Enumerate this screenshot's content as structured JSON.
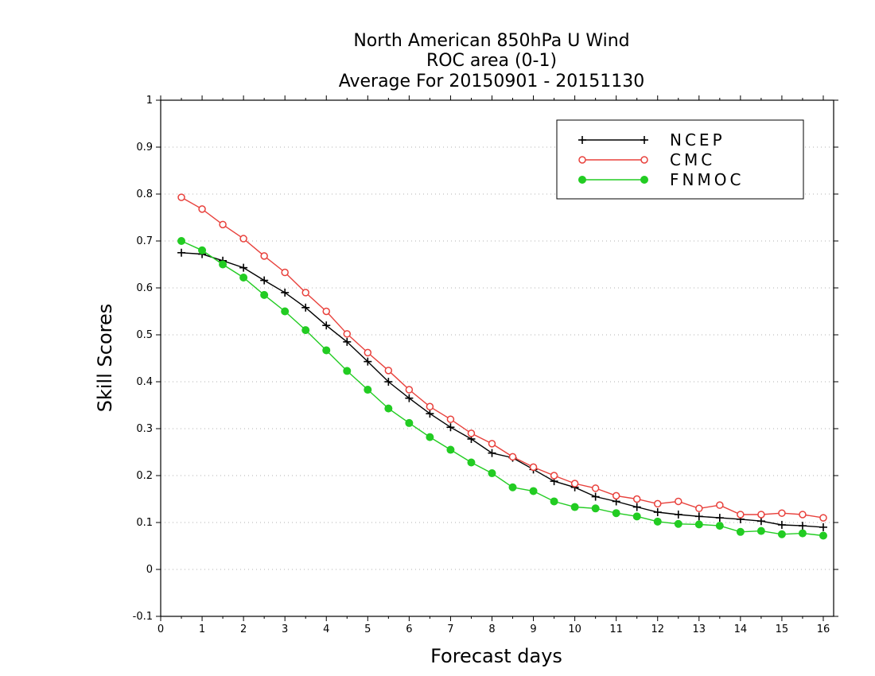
{
  "chart_data": {
    "type": "line",
    "title": [
      "North American 850hPa U Wind",
      "ROC area (0-1)",
      "Average For 20150901 - 20151130"
    ],
    "xlabel": "Forecast days",
    "ylabel": "Skill Scores",
    "xlim": [
      0,
      16.25
    ],
    "ylim": [
      -0.1,
      1
    ],
    "xticks": [
      0,
      1,
      2,
      3,
      4,
      5,
      6,
      7,
      8,
      9,
      10,
      11,
      12,
      13,
      14,
      15,
      16
    ],
    "xtick_labels": [
      "0",
      "1",
      "2",
      "3",
      "4",
      "5",
      "6",
      "7",
      "8",
      "9",
      "10",
      "11",
      "12",
      "13",
      "14",
      "15",
      "16"
    ],
    "yticks": [
      -0.1,
      0,
      0.1,
      0.2,
      0.3,
      0.4,
      0.5,
      0.6,
      0.7,
      0.8,
      0.9,
      1
    ],
    "ytick_labels": [
      "-0.1",
      "0",
      "0.1",
      "0.2",
      "0.3",
      "0.4",
      "0.5",
      "0.6",
      "0.7",
      "0.8",
      "0.9",
      "1"
    ],
    "grid": true,
    "legend_position": "top-right",
    "x": [
      0.5,
      1,
      1.5,
      2,
      2.5,
      3,
      3.5,
      4,
      4.5,
      5,
      5.5,
      6,
      6.5,
      7,
      7.5,
      8,
      8.5,
      9,
      9.5,
      10,
      10.5,
      11,
      11.5,
      12,
      12.5,
      13,
      13.5,
      14,
      14.5,
      15,
      15.5,
      16
    ],
    "series": [
      {
        "name": "NCEP",
        "color": "#000000",
        "marker": "plus",
        "values": [
          0.675,
          0.672,
          0.658,
          0.643,
          0.616,
          0.59,
          0.558,
          0.52,
          0.485,
          0.443,
          0.4,
          0.365,
          0.332,
          0.303,
          0.278,
          0.248,
          0.238,
          0.213,
          0.188,
          0.175,
          0.155,
          0.145,
          0.133,
          0.122,
          0.117,
          0.113,
          0.11,
          0.107,
          0.103,
          0.095,
          0.093,
          0.09
        ]
      },
      {
        "name": "CMC",
        "color": "#e8413c",
        "marker": "open-circle",
        "values": [
          0.793,
          0.768,
          0.735,
          0.705,
          0.668,
          0.633,
          0.59,
          0.55,
          0.502,
          0.462,
          0.424,
          0.383,
          0.347,
          0.32,
          0.29,
          0.268,
          0.24,
          0.218,
          0.2,
          0.183,
          0.173,
          0.157,
          0.15,
          0.14,
          0.145,
          0.13,
          0.137,
          0.117,
          0.117,
          0.12,
          0.117,
          0.11
        ]
      },
      {
        "name": "FNMOC",
        "color": "#22cc22",
        "marker": "filled-circle",
        "values": [
          0.7,
          0.68,
          0.65,
          0.622,
          0.585,
          0.55,
          0.51,
          0.467,
          0.423,
          0.383,
          0.343,
          0.312,
          0.282,
          0.255,
          0.228,
          0.205,
          0.175,
          0.167,
          0.145,
          0.133,
          0.13,
          0.12,
          0.113,
          0.102,
          0.097,
          0.096,
          0.093,
          0.08,
          0.082,
          0.075,
          0.077,
          0.072
        ]
      }
    ]
  }
}
